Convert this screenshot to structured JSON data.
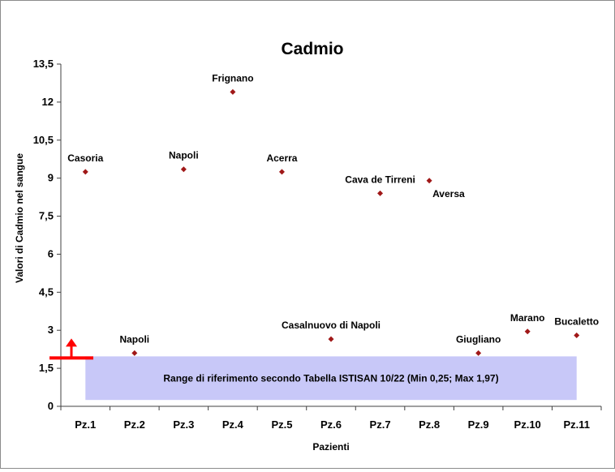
{
  "chart_data": {
    "type": "scatter",
    "title": "Cadmio",
    "xlabel": "Pazienti",
    "ylabel": "Valori di Cadmio nel sangue",
    "ylim": [
      0,
      13.5
    ],
    "yticks": [
      "0",
      "1,5",
      "3",
      "4,5",
      "6",
      "7,5",
      "9",
      "10,5",
      "12",
      "13,5"
    ],
    "ytick_values": [
      0,
      1.5,
      3,
      4.5,
      6,
      7.5,
      9,
      10.5,
      12,
      13.5
    ],
    "categories": [
      "Pz.1",
      "Pz.2",
      "Pz.3",
      "Pz.4",
      "Pz.5",
      "Pz.6",
      "Pz.7",
      "Pz.8",
      "Pz.9",
      "Pz.10",
      "Pz.11"
    ],
    "values": [
      9.25,
      2.1,
      9.35,
      12.4,
      9.25,
      2.65,
      8.4,
      8.9,
      2.1,
      2.95,
      2.8
    ],
    "point_labels": [
      "Casoria",
      "Napoli",
      "Napoli",
      "Frignano",
      "Acerra",
      "Casalnuovo di Napoli",
      "Cava de Tirreni",
      "Aversa",
      "Giugliano",
      "Marano",
      "Bucaletto"
    ],
    "grid": false,
    "reference_range": {
      "min": 0.25,
      "max": 1.97,
      "label": "Range di riferimento secondo Tabella ISTISAN 10/22 (Min 0,25; Max 1,97)",
      "fill_color": "#c8c8f8"
    },
    "marker_color": "#a01818",
    "arrow_color": "#ff0000"
  }
}
